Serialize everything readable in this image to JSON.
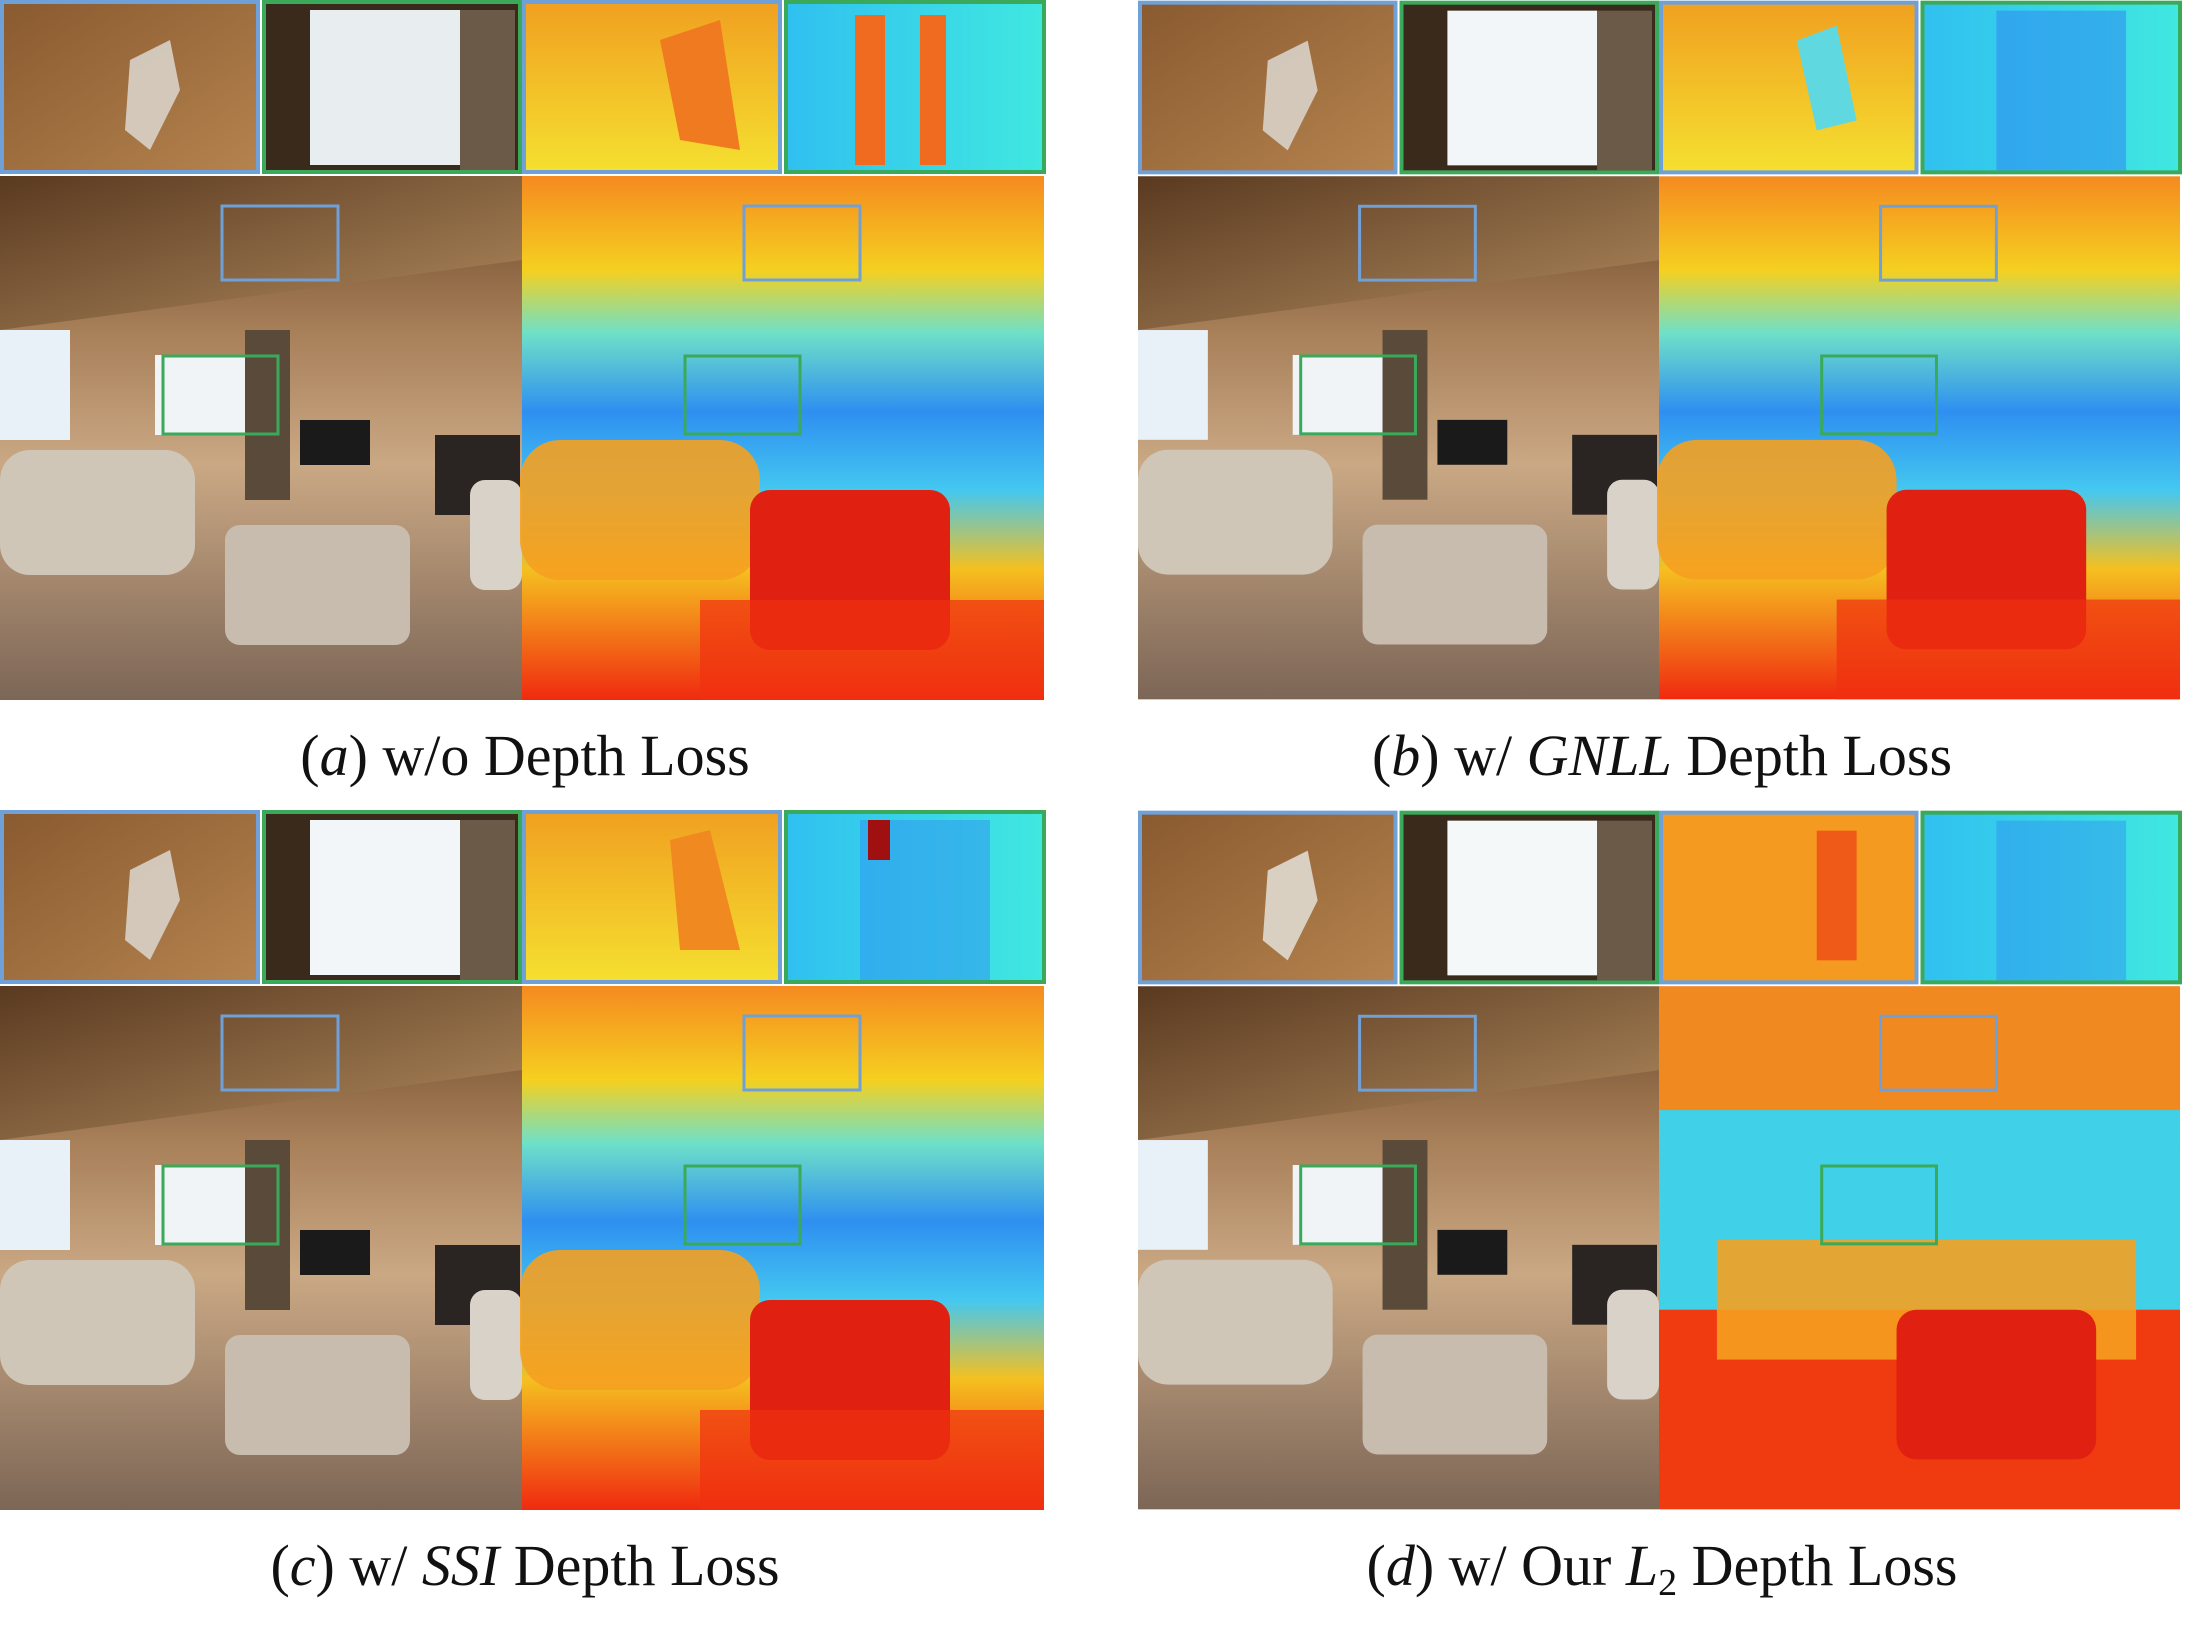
{
  "panels": [
    {
      "letter": "a",
      "pre": " w/o Depth Loss",
      "method": "",
      "post": "",
      "math": "",
      "math_sub": ""
    },
    {
      "letter": "b",
      "pre": " w/ ",
      "method": "GNLL",
      "post": " Depth Loss",
      "math": "",
      "math_sub": ""
    },
    {
      "letter": "c",
      "pre": " w/ ",
      "method": "SSI",
      "post": " Depth Loss",
      "math": "",
      "math_sub": ""
    },
    {
      "letter": "d",
      "pre": " w/ Our ",
      "method": "",
      "post": " Depth Loss",
      "math": "L",
      "math_sub": "2"
    }
  ],
  "colors": {
    "blue_box": "#6fa0d8",
    "green_box": "#3aaa5a",
    "far": "#1e7ff0",
    "mid": "#37e0e6",
    "near": "#f04010"
  }
}
